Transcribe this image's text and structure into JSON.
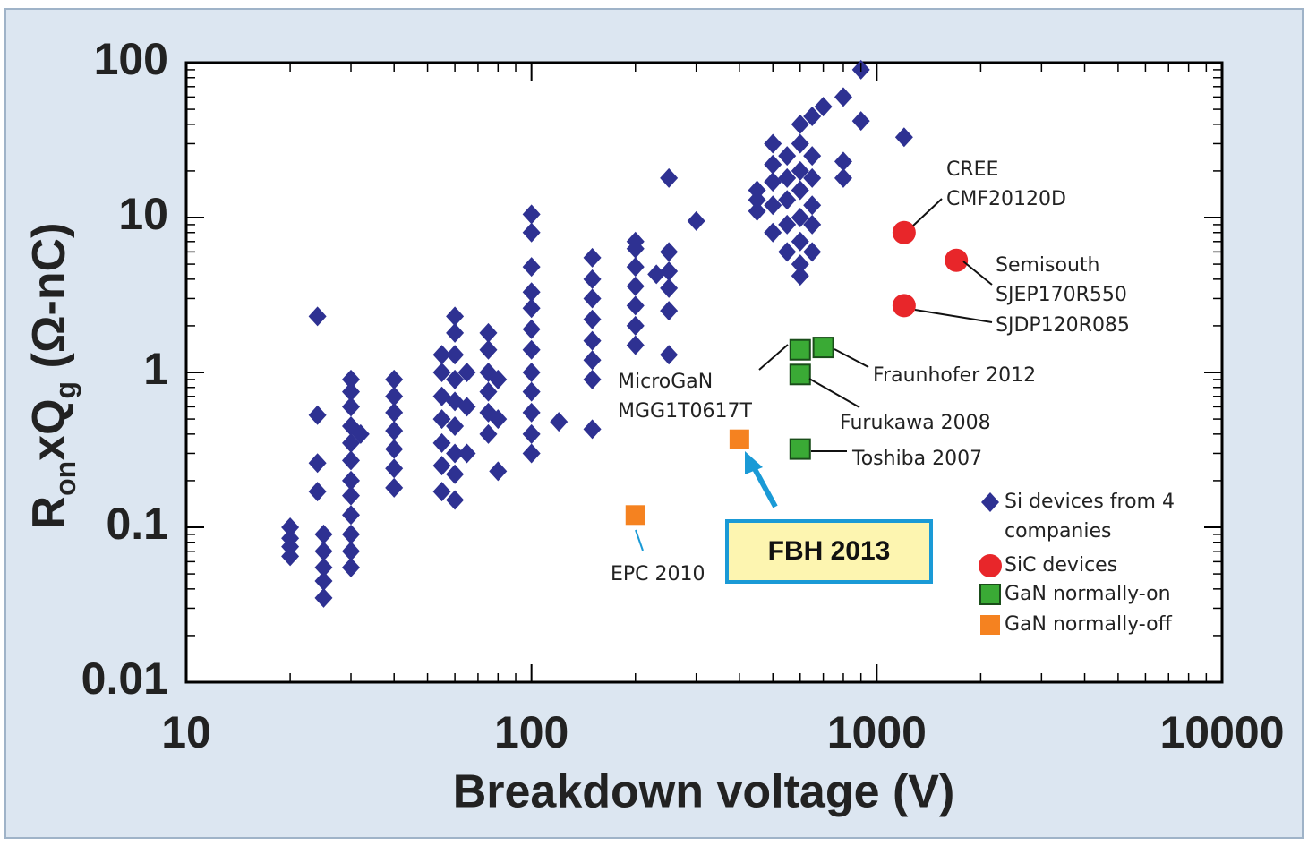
{
  "chart_data": {
    "type": "scatter",
    "xlabel": "Breakdown voltage (V)",
    "ylabel_parts": [
      {
        "text": "R"
      },
      {
        "text": "on",
        "sub": true
      },
      {
        "text": "xQ"
      },
      {
        "text": "g",
        "sub": true
      },
      {
        "text": " (Ω-nC)"
      }
    ],
    "xlog": true,
    "ylog": true,
    "xlim": [
      10,
      10000
    ],
    "ylim": [
      0.01,
      100
    ],
    "xticks": [
      10,
      100,
      1000,
      10000
    ],
    "yticks": [
      0.01,
      0.1,
      1,
      10,
      100
    ],
    "series": [
      {
        "name": "Si devices from 4 companies",
        "marker": "diamond",
        "color": "#2e3192",
        "x": [
          20,
          20,
          20,
          20,
          24,
          24,
          24,
          24,
          25,
          25,
          25,
          25,
          25,
          30,
          30,
          30,
          30,
          30,
          30,
          30,
          30,
          30,
          30,
          30,
          30,
          32,
          40,
          40,
          40,
          40,
          40,
          40,
          40,
          55,
          55,
          55,
          55,
          55,
          55,
          55,
          60,
          60,
          60,
          60,
          60,
          60,
          60,
          60,
          60,
          65,
          65,
          65,
          75,
          75,
          75,
          75,
          75,
          75,
          80,
          80,
          80,
          100,
          100,
          100,
          100,
          100,
          100,
          100,
          100,
          100,
          100,
          100,
          100,
          120,
          150,
          150,
          150,
          150,
          150,
          150,
          150,
          150,
          200,
          200,
          200,
          200,
          200,
          200,
          200,
          230,
          250,
          250,
          250,
          250,
          250,
          250,
          300,
          450,
          450,
          450,
          500,
          500,
          500,
          500,
          500,
          550,
          550,
          550,
          550,
          550,
          600,
          600,
          600,
          600,
          600,
          600,
          600,
          600,
          650,
          650,
          650,
          650,
          650,
          650,
          700,
          800,
          800,
          800,
          900,
          900,
          1200
        ],
        "y": [
          0.065,
          0.075,
          0.085,
          0.1,
          2.3,
          0.53,
          0.26,
          0.17,
          0.09,
          0.07,
          0.055,
          0.045,
          0.035,
          0.055,
          0.07,
          0.09,
          0.12,
          0.16,
          0.2,
          0.27,
          0.35,
          0.45,
          0.6,
          0.75,
          0.9,
          0.4,
          0.18,
          0.24,
          0.32,
          0.42,
          0.55,
          0.7,
          0.9,
          0.17,
          0.25,
          0.35,
          0.5,
          0.7,
          1.0,
          1.3,
          0.15,
          0.22,
          0.3,
          0.45,
          0.65,
          0.9,
          1.3,
          1.8,
          2.3,
          0.3,
          0.6,
          1.0,
          0.4,
          0.55,
          0.75,
          1.0,
          1.4,
          1.8,
          0.23,
          0.5,
          0.9,
          0.3,
          0.4,
          0.55,
          0.75,
          1.0,
          1.4,
          1.9,
          2.6,
          3.3,
          4.8,
          8,
          10.5,
          0.48,
          0.43,
          0.9,
          1.2,
          1.6,
          2.2,
          3,
          4,
          5.5,
          1.5,
          2,
          2.7,
          3.6,
          4.8,
          6.3,
          7,
          4.3,
          1.3,
          2.5,
          3.5,
          4.5,
          6,
          18,
          9.5,
          11,
          13,
          15,
          8,
          12,
          17,
          22,
          30,
          6,
          9,
          13,
          18,
          25,
          4.2,
          5,
          7,
          10,
          15,
          20,
          30,
          40,
          6,
          9,
          12,
          18,
          25,
          45,
          52,
          18,
          23,
          60,
          42,
          90,
          33
        ]
      },
      {
        "name": "SiC devices",
        "marker": "circle",
        "color": "#e8262a",
        "x": [
          1200,
          1700,
          1200
        ],
        "y": [
          8,
          5.3,
          2.7
        ]
      },
      {
        "name": "GaN normally-on",
        "marker": "square",
        "color": "#3aaa35",
        "x": [
          600,
          700,
          600,
          600
        ],
        "y": [
          1.4,
          1.45,
          0.97,
          0.32
        ]
      },
      {
        "name": "GaN normally-off",
        "marker": "square",
        "color": "#f58220",
        "x": [
          200,
          400
        ],
        "y": [
          0.12,
          0.37
        ]
      }
    ],
    "annotations": [
      {
        "lines": [
          "CREE",
          "CMF20120D"
        ]
      },
      {
        "lines": [
          "Semisouth",
          "SJEP170R550"
        ]
      },
      {
        "lines": [
          "SJDP120R085"
        ]
      },
      {
        "lines": [
          "Fraunhofer 2012"
        ]
      },
      {
        "lines": [
          "Furukawa 2008"
        ]
      },
      {
        "lines": [
          "Toshiba 2007"
        ]
      },
      {
        "lines": [
          "MicroGaN",
          "MGG1T0617T"
        ]
      },
      {
        "lines": [
          "EPC 2010"
        ]
      },
      {
        "lines": [
          "FBH 2013"
        ]
      }
    ]
  }
}
